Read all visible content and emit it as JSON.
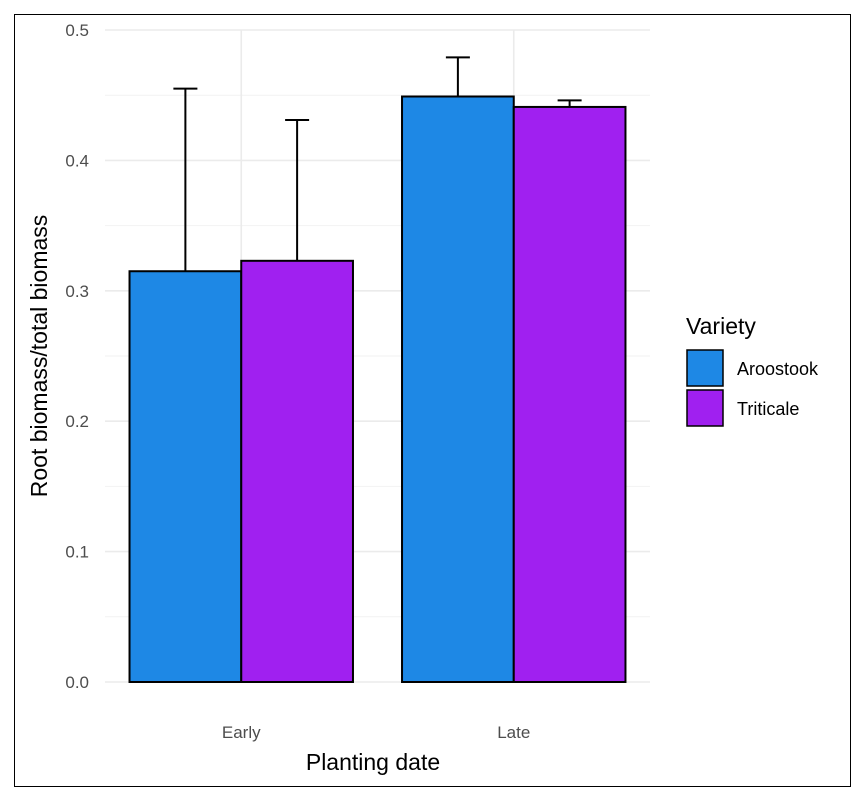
{
  "chart_data": {
    "type": "bar",
    "title": "",
    "xlabel": "Planting date",
    "ylabel": "Root biomass/total biomass",
    "categories": [
      "Early",
      "Late"
    ],
    "ylim": [
      0,
      0.5
    ],
    "yticks": [
      0.0,
      0.1,
      0.2,
      0.3,
      0.4,
      0.5
    ],
    "ytick_labels": [
      "0.0",
      "0.1",
      "0.2",
      "0.3",
      "0.4",
      "0.5"
    ],
    "grid": true,
    "series": [
      {
        "name": "Aroostook",
        "color": "#1e88e5",
        "values": [
          0.315,
          0.449
        ],
        "error_upper": [
          0.455,
          0.479
        ]
      },
      {
        "name": "Triticale",
        "color": "#a020f0",
        "values": [
          0.323,
          0.441
        ],
        "error_upper": [
          0.431,
          0.446
        ]
      }
    ],
    "legend": {
      "title": "Variety",
      "position": "right"
    }
  }
}
